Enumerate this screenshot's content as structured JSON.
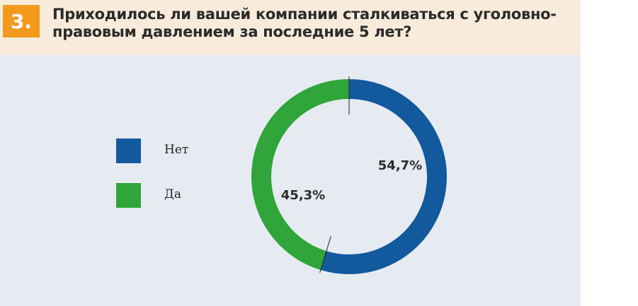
{
  "badge": "3.",
  "title_lines": [
    "Приходилось ли вашей компании сталкиваться с уголовно-",
    "правовым давлением за последние 5 лет?"
  ],
  "colors": {
    "header_bg": "#f8ebdb",
    "badge_bg": "#f39a1e",
    "body_bg": "#e6ebf2",
    "net": "#12599e",
    "da": "#2fa53a"
  },
  "chart_data": {
    "type": "pie",
    "variant": "donut",
    "slices": [
      {
        "label": "Нет",
        "value": 54.7,
        "display": "54,7%",
        "color": "#12599e"
      },
      {
        "label": "Да",
        "value": 45.3,
        "display": "45,3%",
        "color": "#2fa53a"
      }
    ],
    "legend_placement": "left"
  }
}
